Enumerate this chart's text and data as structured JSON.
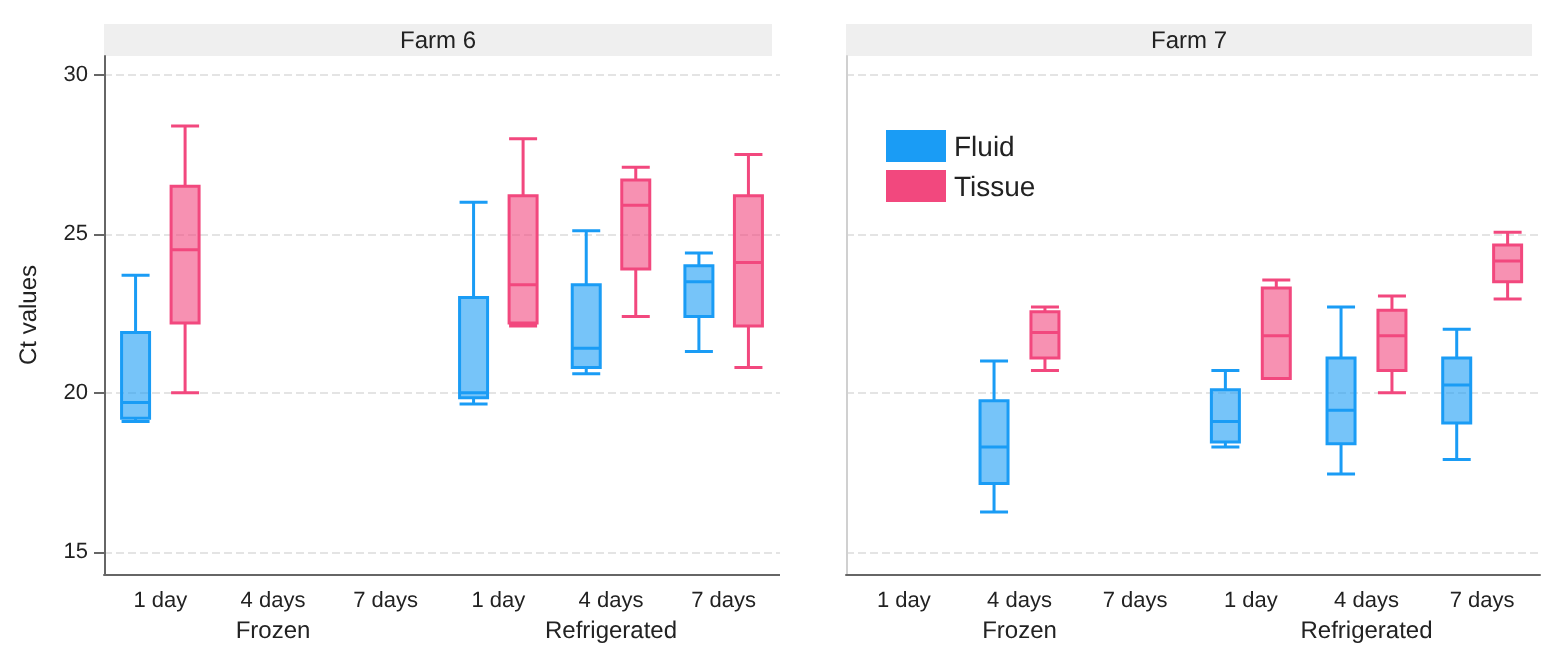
{
  "chart_data": [
    {
      "type": "box",
      "title": "Farm 6",
      "ylabel": "Ct values",
      "categories": [
        "1 day",
        "4 days",
        "7 days",
        "1 day",
        "4 days",
        "7 days"
      ],
      "annotations": [
        "Frozen",
        "Refrigerated"
      ],
      "ylim": [
        14.3,
        30.6
      ],
      "yticks": [
        15,
        20,
        25,
        30
      ],
      "grid": "y",
      "legend": false,
      "series": [
        {
          "color": "#1a9cf5",
          "boxes": [
            {
              "low": 19.1,
              "q1": 19.2,
              "median": 19.7,
              "q3": 21.9,
              "high": 23.7
            },
            null,
            null,
            {
              "low": 19.65,
              "q1": 19.85,
              "median": 20.0,
              "q3": 23.0,
              "high": 26.0
            },
            {
              "low": 20.6,
              "q1": 20.8,
              "median": 21.4,
              "q3": 23.4,
              "high": 25.1
            },
            {
              "low": 21.3,
              "q1": 22.4,
              "median": 23.5,
              "q3": 24.0,
              "high": 24.4
            }
          ]
        },
        {
          "color": "#f2487e",
          "boxes": [
            {
              "low": 20.0,
              "q1": 22.2,
              "median": 24.5,
              "q3": 26.5,
              "high": 28.4
            },
            null,
            null,
            {
              "low": 22.1,
              "q1": 22.2,
              "median": 23.4,
              "q3": 26.2,
              "high": 28.0
            },
            {
              "low": 22.4,
              "q1": 23.9,
              "median": 25.9,
              "q3": 26.7,
              "high": 27.1
            },
            {
              "low": 20.8,
              "q1": 22.1,
              "median": 24.1,
              "q3": 26.2,
              "high": 27.5
            }
          ]
        }
      ]
    },
    {
      "type": "box",
      "title": "Farm 7",
      "categories": [
        "1 day",
        "4 days",
        "7 days",
        "1 day",
        "4 days",
        "7 days"
      ],
      "annotations": [
        "Frozen",
        "Refrigerated"
      ],
      "ylim": [
        14.3,
        30.6
      ],
      "yticks": [
        15,
        20,
        25,
        30
      ],
      "grid": "y",
      "legend": "top left",
      "tick_labels": "x",
      "series": [
        {
          "name": "Fluid",
          "color": "#1a9cf5",
          "boxes": [
            null,
            {
              "low": 16.25,
              "q1": 17.15,
              "median": 18.3,
              "q3": 19.75,
              "high": 21.0
            },
            null,
            {
              "low": 18.3,
              "q1": 18.45,
              "median": 19.1,
              "q3": 20.1,
              "high": 20.7
            },
            {
              "low": 17.45,
              "q1": 18.4,
              "median": 19.45,
              "q3": 21.1,
              "high": 22.7
            },
            {
              "low": 17.9,
              "q1": 19.05,
              "median": 20.25,
              "q3": 21.1,
              "high": 22.0
            }
          ]
        },
        {
          "name": "Tissue",
          "color": "#f2487e",
          "boxes": [
            null,
            {
              "low": 20.7,
              "q1": 21.1,
              "median": 21.9,
              "q3": 22.55,
              "high": 22.7
            },
            null,
            {
              "low": 20.45,
              "q1": 20.45,
              "median": 21.8,
              "q3": 23.3,
              "high": 23.55
            },
            {
              "low": 20.0,
              "q1": 20.7,
              "median": 21.8,
              "q3": 22.6,
              "high": 23.05
            },
            {
              "low": 22.95,
              "q1": 23.5,
              "median": 24.15,
              "q3": 24.65,
              "high": 25.05
            }
          ]
        }
      ]
    }
  ]
}
